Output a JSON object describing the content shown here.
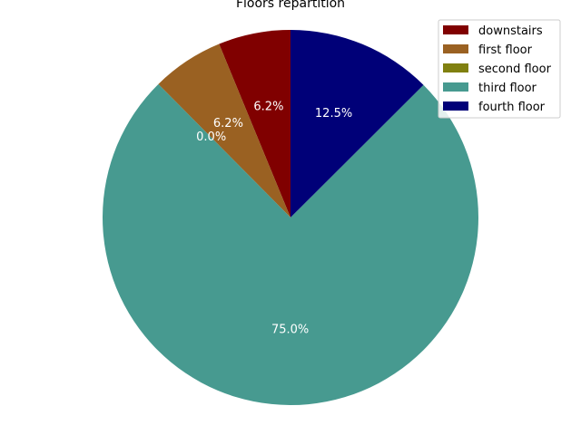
{
  "chart_data": {
    "type": "pie",
    "title": "Floors repartition",
    "categories": [
      "downstairs",
      "first floor",
      "second floor",
      "third floor",
      "fourth floor"
    ],
    "values": [
      6.2,
      6.2,
      0.0,
      75.0,
      12.5
    ],
    "labels": [
      "6.2%",
      "6.2%",
      "0.0%",
      "75.0%",
      "12.5%"
    ],
    "colors": [
      "#800000",
      "#9a6122",
      "#808010",
      "#479a90",
      "#000078"
    ],
    "start_angle_deg": 90,
    "direction": "counterclockwise",
    "legend": {
      "position": "top-right"
    }
  }
}
